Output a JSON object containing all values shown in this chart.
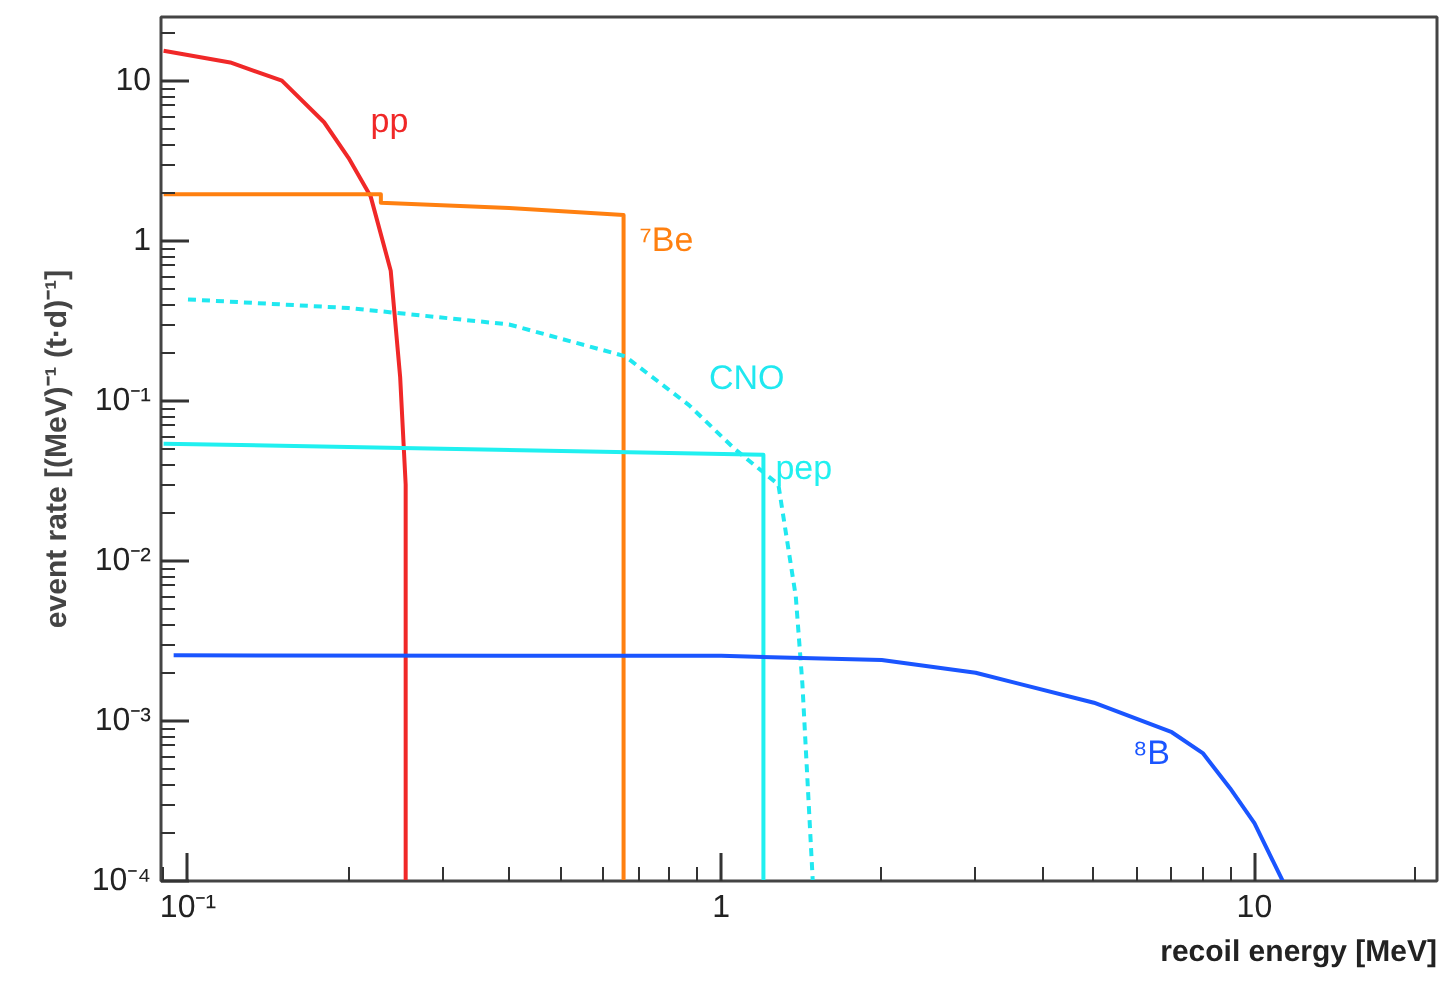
{
  "chart_data": {
    "type": "line",
    "xlabel": "recoil energy [MeV]",
    "ylabel": "event rate [(MeV)⁻¹ (t·d)⁻¹]",
    "log": "xy",
    "grid": false,
    "marker": "none",
    "xlim": [
      0.089,
      22
    ],
    "ylim": [
      0.0001,
      25
    ],
    "xticks": [
      {
        "value": 0.1,
        "label": "10⁻¹"
      },
      1,
      10
    ],
    "yticks": [
      {
        "value": 0.0001,
        "label": "10⁻⁴"
      },
      {
        "value": 0.001,
        "label": "10⁻³"
      },
      {
        "value": 0.01,
        "label": "10⁻²"
      },
      {
        "value": 0.1,
        "label": "10⁻¹"
      },
      1,
      10
    ],
    "series": [
      {
        "name": "pp",
        "color": "#f02828",
        "line_style": "solid",
        "x": [
          0.09,
          0.12,
          0.15,
          0.18,
          0.2,
          0.22,
          0.24,
          0.25,
          0.256,
          0.256
        ],
        "values": [
          15.4,
          13,
          10,
          5.5,
          3.3,
          1.9,
          0.65,
          0.14,
          0.03,
          0.0001
        ]
      },
      {
        "name": "⁷Be",
        "color": "#ff8010",
        "line_style": "solid",
        "x": [
          0.09,
          0.23,
          0.23,
          0.4,
          0.656,
          0.656
        ],
        "values": [
          1.95,
          1.95,
          1.73,
          1.6,
          1.45,
          0.0001
        ]
      },
      {
        "name": "CNO",
        "color": "#20e8f0",
        "line_style": "dashed",
        "x": [
          0.1,
          0.2,
          0.4,
          0.66,
          0.87,
          1.06,
          1.28,
          1.38,
          1.42,
          1.485
        ],
        "values": [
          0.43,
          0.38,
          0.3,
          0.19,
          0.094,
          0.05,
          0.03,
          0.006,
          0.0017,
          0.0001
        ]
      },
      {
        "name": "pep",
        "color": "#20f0f0",
        "line_style": "solid",
        "x": [
          0.09,
          1.2,
          1.2
        ],
        "values": [
          0.054,
          0.046,
          0.0001
        ]
      },
      {
        "name": "⁸B",
        "color": "#1a55ff",
        "line_style": "solid",
        "x": [
          0.094,
          1,
          2,
          3,
          5,
          7,
          8,
          9,
          10,
          11.3
        ],
        "values": [
          0.00257,
          0.00255,
          0.0024,
          0.002,
          0.0013,
          0.00085,
          0.00063,
          0.00038,
          0.00023,
          0.0001
        ]
      }
    ]
  }
}
